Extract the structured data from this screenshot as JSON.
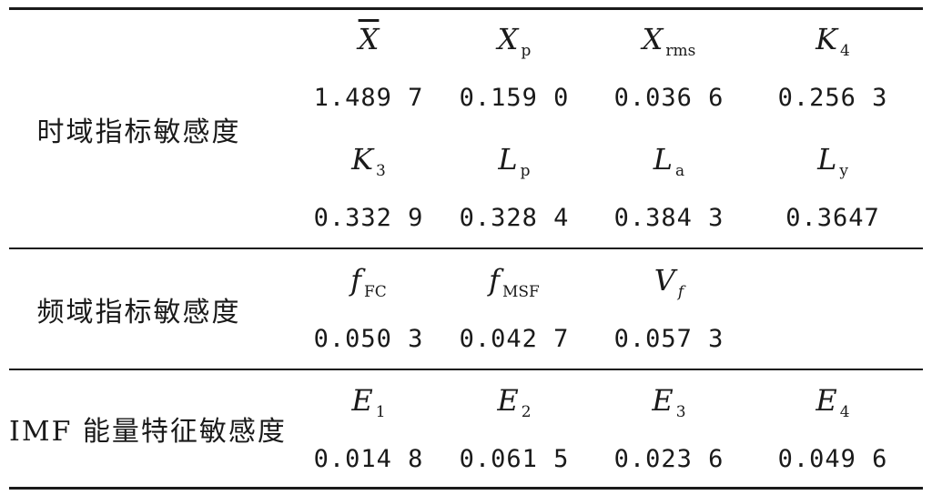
{
  "table": {
    "sections": [
      {
        "category": "时域指标敏感度",
        "rows": [
          {
            "symbols": [
              {
                "base": "X",
                "sub": "",
                "overline": true
              },
              {
                "base": "X",
                "sub": "p",
                "overline": false
              },
              {
                "base": "X",
                "sub": "rms",
                "overline": false
              },
              {
                "base": "K",
                "sub": "4",
                "overline": false
              }
            ],
            "values": [
              "1.489 7",
              "0.159 0",
              "0.036 6",
              "0.256 3"
            ]
          },
          {
            "symbols": [
              {
                "base": "K",
                "sub": "3",
                "overline": false
              },
              {
                "base": "L",
                "sub": "p",
                "overline": false
              },
              {
                "base": "L",
                "sub": "a",
                "overline": false
              },
              {
                "base": "L",
                "sub": "y",
                "overline": false
              }
            ],
            "values": [
              "0.332 9",
              "0.328 4",
              "0.384 3",
              "0.3647"
            ]
          }
        ]
      },
      {
        "category": "频域指标敏感度",
        "rows": [
          {
            "symbols": [
              {
                "base": "f",
                "sub": "FC",
                "overline": false
              },
              {
                "base": "f",
                "sub": "MSF",
                "overline": false
              },
              {
                "base": "V",
                "sub": "f",
                "overline": false
              }
            ],
            "values": [
              "0.050 3",
              "0.042 7",
              "0.057 3"
            ]
          }
        ]
      },
      {
        "category": "IMF 能量特征敏感度",
        "rows": [
          {
            "symbols": [
              {
                "base": "E",
                "sub": "1",
                "overline": false
              },
              {
                "base": "E",
                "sub": "2",
                "overline": false
              },
              {
                "base": "E",
                "sub": "3",
                "overline": false
              },
              {
                "base": "E",
                "sub": "4",
                "overline": false
              }
            ],
            "values": [
              "0.014 8",
              "0.061 5",
              "0.023 6",
              "0.049 6"
            ]
          }
        ]
      }
    ]
  }
}
